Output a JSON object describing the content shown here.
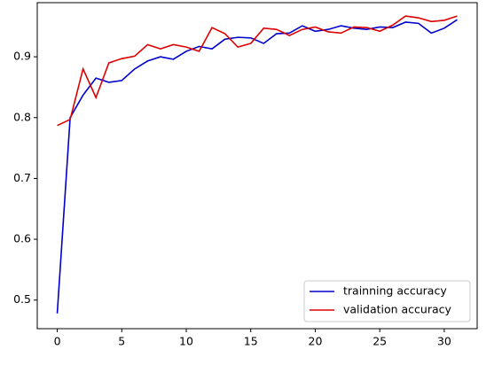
{
  "chart_data": {
    "type": "line",
    "x": [
      0,
      1,
      2,
      3,
      4,
      5,
      6,
      7,
      8,
      9,
      10,
      11,
      12,
      13,
      14,
      15,
      16,
      17,
      18,
      19,
      20,
      21,
      22,
      23,
      24,
      25,
      26,
      27,
      28,
      29,
      30,
      31
    ],
    "series": [
      {
        "name": "trainning accuracy",
        "color": "#0000cc",
        "values": [
          0.478,
          0.8,
          0.837,
          0.865,
          0.858,
          0.861,
          0.88,
          0.893,
          0.9,
          0.896,
          0.909,
          0.917,
          0.913,
          0.929,
          0.932,
          0.931,
          0.922,
          0.938,
          0.939,
          0.951,
          0.942,
          0.945,
          0.951,
          0.947,
          0.945,
          0.949,
          0.948,
          0.957,
          0.955,
          0.939,
          0.947,
          0.961
        ]
      },
      {
        "name": "validation accuracy",
        "color": "#dd0000",
        "values": [
          0.787,
          0.797,
          0.88,
          0.833,
          0.89,
          0.897,
          0.901,
          0.92,
          0.913,
          0.92,
          0.916,
          0.909,
          0.948,
          0.938,
          0.916,
          0.922,
          0.947,
          0.945,
          0.935,
          0.945,
          0.949,
          0.941,
          0.939,
          0.949,
          0.948,
          0.942,
          0.952,
          0.967,
          0.964,
          0.958,
          0.96,
          0.967
        ]
      }
    ],
    "xlim": [
      -1.55,
      32.55
    ],
    "xticks": [
      0,
      5,
      10,
      15,
      20,
      25,
      30
    ],
    "ylim": [
      0.453,
      0.989
    ],
    "yticks": [
      0.5,
      0.6,
      0.7,
      0.8,
      0.9
    ],
    "legend": "lower right"
  }
}
